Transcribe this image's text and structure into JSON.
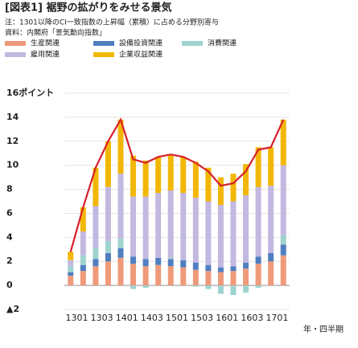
{
  "chart_data": {
    "type": "stacked-bar-line",
    "title": "[図表1] 裾野の拡がりをみせる景気",
    "note": "注：1301以降のCI一致指数の上昇幅（累積）に占める分野別寄与",
    "source": "資料：内閣府「景気動向指数」",
    "x_label": "年・四半期",
    "categories": [
      "1301",
      null,
      "1303",
      null,
      "1401",
      null,
      "1403",
      null,
      "1501",
      null,
      "1503",
      null,
      "1601",
      null,
      "1603",
      null,
      "1701",
      null
    ],
    "series": [
      {
        "name": "生産関連",
        "color": "#ef9a7a",
        "values": [
          0.8,
          1.2,
          1.6,
          2.0,
          2.3,
          1.8,
          1.6,
          1.7,
          1.6,
          1.5,
          1.3,
          1.2,
          1.1,
          1.2,
          1.4,
          1.8,
          2.0,
          2.5
        ]
      },
      {
        "name": "設備投資関連",
        "color": "#4f7fc0",
        "values": [
          0.3,
          0.5,
          0.6,
          0.7,
          0.8,
          0.6,
          0.6,
          0.6,
          0.6,
          0.6,
          0.6,
          0.5,
          0.4,
          0.4,
          0.5,
          0.6,
          0.7,
          0.9
        ]
      },
      {
        "name": "消費関連",
        "color": "#9fd3cf",
        "values": [
          0.5,
          0.8,
          0.9,
          1.0,
          0.8,
          -0.3,
          -0.2,
          0.0,
          0.1,
          0.0,
          -0.1,
          -0.3,
          -0.7,
          -0.8,
          -0.6,
          -0.2,
          0.0,
          0.8
        ]
      },
      {
        "name": "雇用関連",
        "color": "#c3b8e0",
        "values": [
          0.5,
          2.0,
          3.5,
          4.5,
          5.4,
          5.0,
          5.2,
          5.4,
          5.6,
          5.6,
          5.4,
          5.3,
          5.2,
          5.4,
          5.6,
          5.8,
          5.6,
          5.8
        ]
      },
      {
        "name": "企業収益関連",
        "color": "#f2b705",
        "values": [
          0.7,
          2.0,
          3.2,
          3.8,
          4.5,
          3.4,
          3.0,
          3.0,
          3.0,
          3.0,
          3.0,
          2.8,
          2.3,
          2.3,
          2.6,
          3.3,
          3.2,
          3.8
        ]
      }
    ],
    "line": {
      "color": "#d7202a",
      "values": [
        2.8,
        6.5,
        9.8,
        12.0,
        13.8,
        10.5,
        10.2,
        10.7,
        10.9,
        10.7,
        10.2,
        9.5,
        8.3,
        8.5,
        9.5,
        11.3,
        11.5,
        13.8
      ]
    },
    "ylim": [
      -2,
      16
    ],
    "yticks": [
      {
        "value": -2,
        "label": "▲2"
      },
      0,
      2,
      4,
      6,
      8,
      10,
      12,
      14,
      {
        "value": 16,
        "label": "16ポイント"
      }
    ],
    "grid": true
  }
}
